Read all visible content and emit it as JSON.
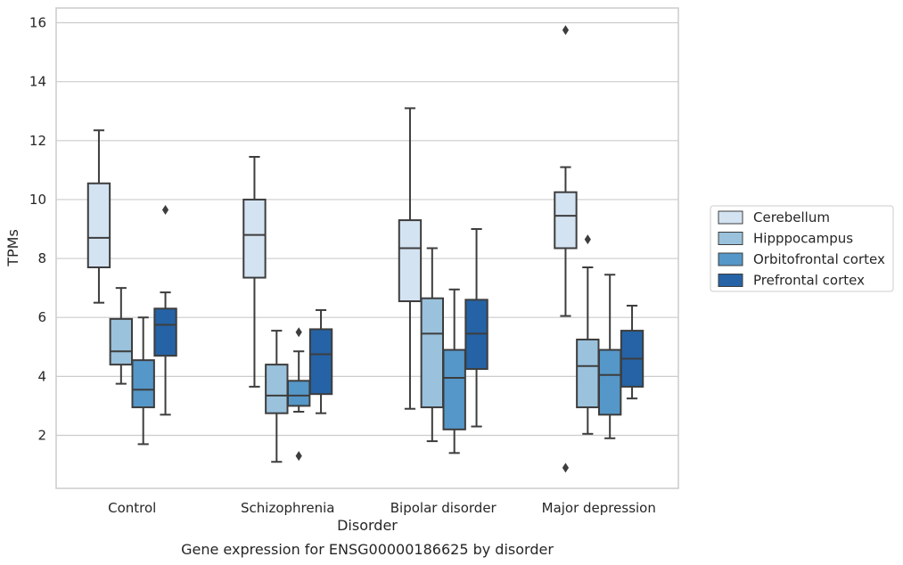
{
  "chart_data": {
    "type": "box",
    "title": "",
    "caption": "Gene expression for ENSG00000186625 by disorder",
    "xlabel": "Disorder",
    "ylabel": "TPMs",
    "ylim": [
      0.2,
      16.5
    ],
    "yticks": [
      2,
      4,
      6,
      8,
      10,
      12,
      14,
      16
    ],
    "grid": "horizontal",
    "legend_position": "right",
    "categories": [
      "Control",
      "Schizophrenia",
      "Bipolar disorder",
      "Major depression"
    ],
    "series": [
      {
        "name": "Cerebellum",
        "color": "#d4e3f2",
        "boxes": [
          {
            "whisker_low": 6.5,
            "q1": 7.7,
            "median": 8.7,
            "q3": 10.55,
            "whisker_high": 12.35,
            "outliers": []
          },
          {
            "whisker_low": 3.65,
            "q1": 7.35,
            "median": 8.8,
            "q3": 10.0,
            "whisker_high": 11.45,
            "outliers": []
          },
          {
            "whisker_low": 2.9,
            "q1": 6.55,
            "median": 8.35,
            "q3": 9.3,
            "whisker_high": 13.1,
            "outliers": []
          },
          {
            "whisker_low": 6.05,
            "q1": 8.35,
            "median": 9.45,
            "q3": 10.25,
            "whisker_high": 11.1,
            "outliers": [
              15.75,
              0.9
            ]
          }
        ]
      },
      {
        "name": "Hipppocampus",
        "color": "#9ac2dd",
        "boxes": [
          {
            "whisker_low": 3.75,
            "q1": 4.4,
            "median": 4.85,
            "q3": 5.95,
            "whisker_high": 7.0,
            "outliers": []
          },
          {
            "whisker_low": 1.1,
            "q1": 2.75,
            "median": 3.35,
            "q3": 4.4,
            "whisker_high": 5.55,
            "outliers": []
          },
          {
            "whisker_low": 1.8,
            "q1": 2.95,
            "median": 5.45,
            "q3": 6.65,
            "whisker_high": 8.35,
            "outliers": []
          },
          {
            "whisker_low": 2.05,
            "q1": 2.95,
            "median": 4.35,
            "q3": 5.25,
            "whisker_high": 7.7,
            "outliers": [
              8.65
            ]
          }
        ]
      },
      {
        "name": "Orbitofrontal cortex",
        "color": "#5597c8",
        "boxes": [
          {
            "whisker_low": 1.7,
            "q1": 2.95,
            "median": 3.55,
            "q3": 4.55,
            "whisker_high": 6.0,
            "outliers": []
          },
          {
            "whisker_low": 2.8,
            "q1": 3.0,
            "median": 3.35,
            "q3": 3.85,
            "whisker_high": 4.85,
            "outliers": [
              5.5,
              1.3
            ]
          },
          {
            "whisker_low": 1.4,
            "q1": 2.2,
            "median": 3.95,
            "q3": 4.9,
            "whisker_high": 6.95,
            "outliers": []
          },
          {
            "whisker_low": 1.9,
            "q1": 2.7,
            "median": 4.05,
            "q3": 4.9,
            "whisker_high": 7.45,
            "outliers": []
          }
        ]
      },
      {
        "name": "Prefrontal cortex",
        "color": "#2563a6",
        "boxes": [
          {
            "whisker_low": 2.7,
            "q1": 4.7,
            "median": 5.75,
            "q3": 6.3,
            "whisker_high": 6.85,
            "outliers": [
              9.65
            ]
          },
          {
            "whisker_low": 2.75,
            "q1": 3.4,
            "median": 4.75,
            "q3": 5.6,
            "whisker_high": 6.25,
            "outliers": []
          },
          {
            "whisker_low": 2.3,
            "q1": 4.25,
            "median": 5.45,
            "q3": 6.6,
            "whisker_high": 9.0,
            "outliers": []
          },
          {
            "whisker_low": 3.25,
            "q1": 3.65,
            "median": 4.6,
            "q3": 5.55,
            "whisker_high": 6.4,
            "outliers": []
          }
        ]
      }
    ]
  }
}
